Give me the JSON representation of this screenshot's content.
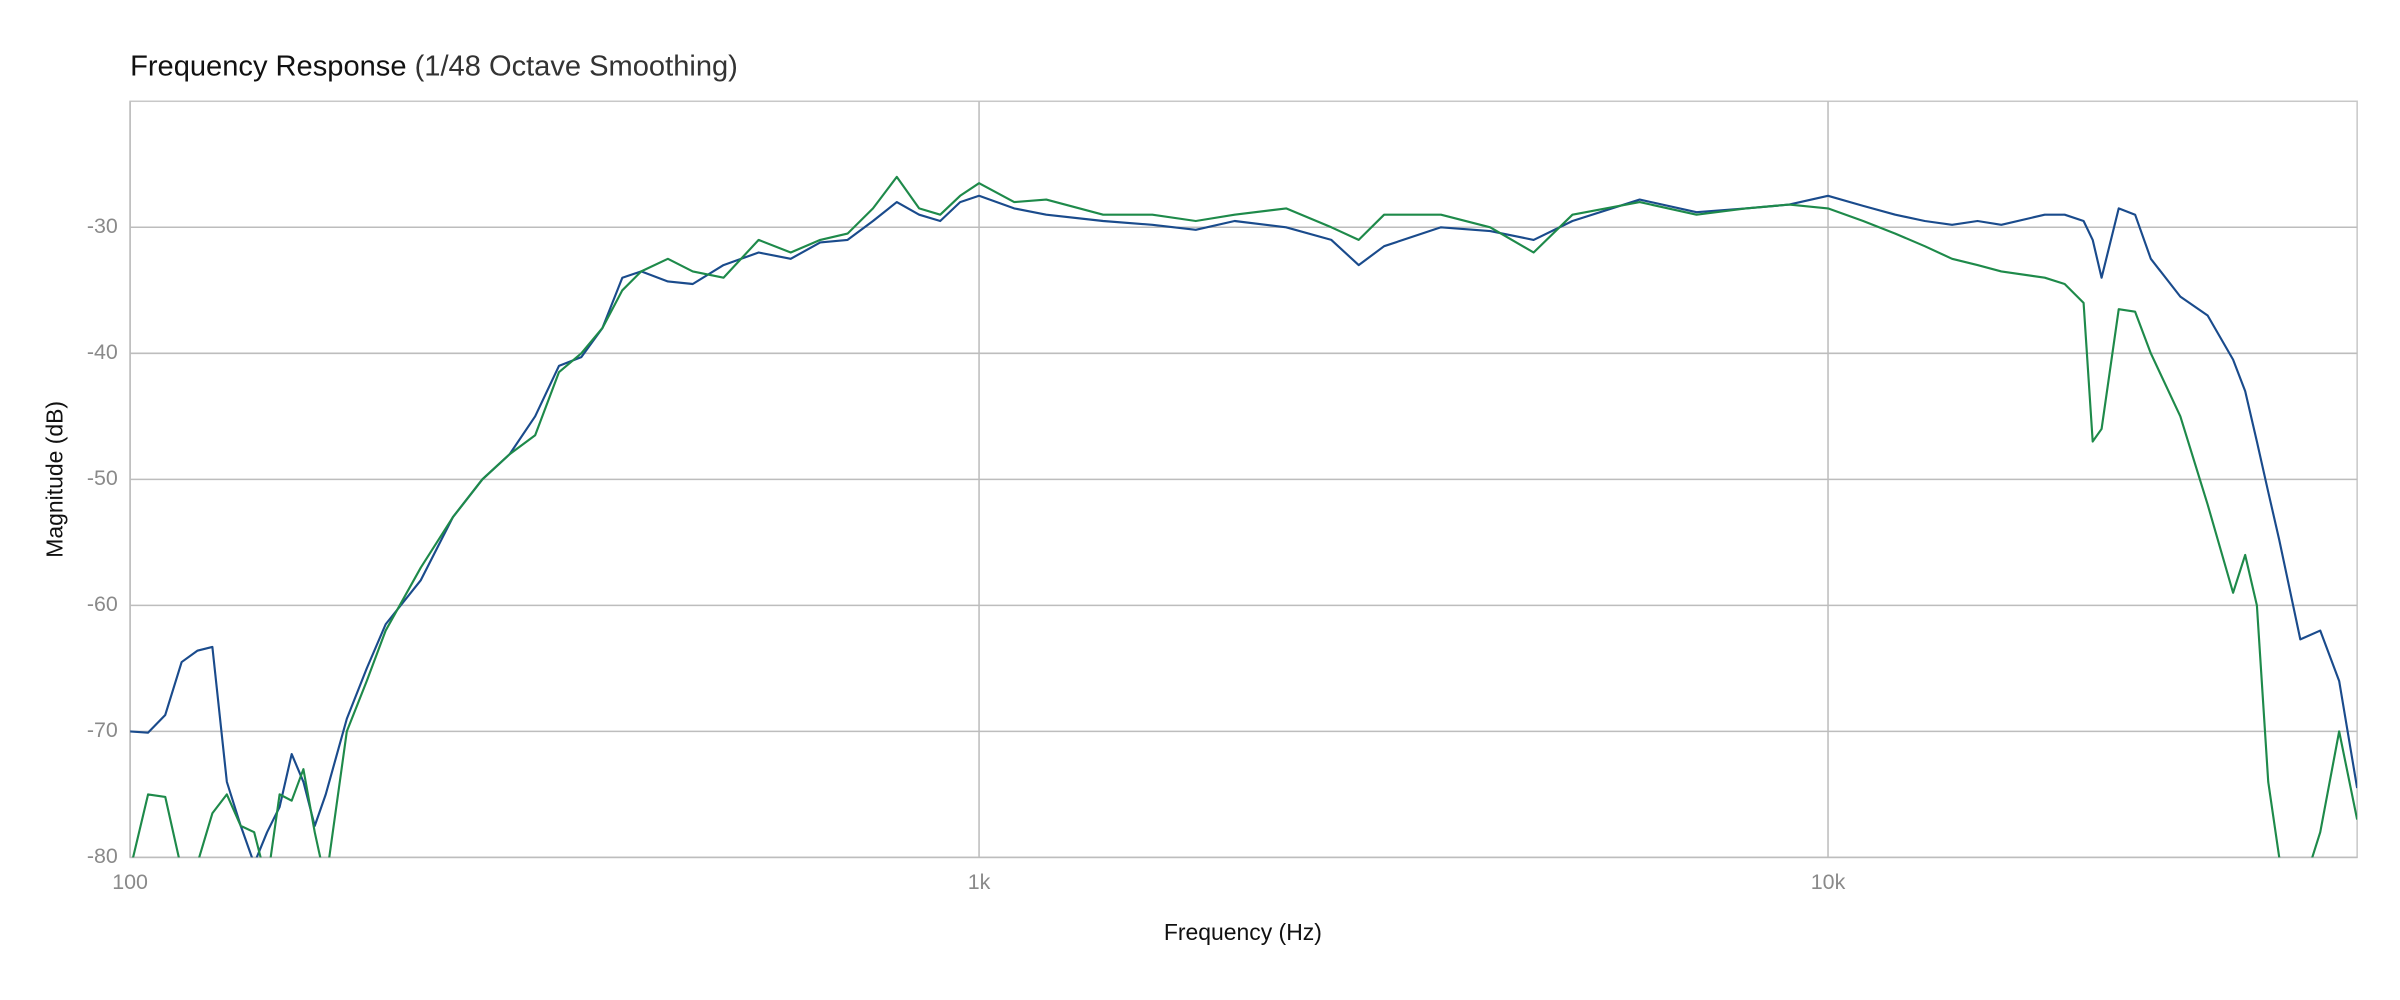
{
  "chart_data": {
    "type": "line",
    "title": "Frequency Response",
    "subtitle": "(1/48 Octave Smoothing)",
    "xlabel": "Frequency (Hz)",
    "ylabel": "Magnitude (dB)",
    "xscale": "log",
    "grid": true,
    "xlim": [
      100,
      42000
    ],
    "ylim": [
      -80,
      -20
    ],
    "xticks": [
      100,
      {
        "value": 1000,
        "label": "1k"
      },
      {
        "value": 10000,
        "label": "10k"
      }
    ],
    "yticks": [
      -80,
      -70,
      -60,
      -50,
      -40,
      -30
    ],
    "x": [
      100,
      105,
      110,
      115,
      120,
      125,
      130,
      135,
      140,
      145,
      150,
      155,
      160,
      165,
      170,
      180,
      190,
      200,
      220,
      240,
      260,
      280,
      300,
      320,
      340,
      360,
      380,
      400,
      430,
      460,
      500,
      550,
      600,
      650,
      700,
      750,
      800,
      850,
      900,
      950,
      1000,
      1100,
      1200,
      1400,
      1600,
      1800,
      2000,
      2300,
      2600,
      2800,
      3000,
      3500,
      4000,
      4500,
      5000,
      6000,
      7000,
      8000,
      9000,
      10000,
      11000,
      12000,
      13000,
      14000,
      15000,
      16000,
      18000,
      19000,
      20000,
      20500,
      21000,
      22000,
      23000,
      24000,
      26000,
      28000,
      30000,
      31000,
      32000,
      33000,
      34000,
      36000,
      38000,
      40000,
      42000
    ],
    "series": [
      {
        "color": "#1a4b8c",
        "values": [
          -70,
          -70.1,
          -68.7,
          -64.5,
          -63.6,
          -63.3,
          -74,
          -77.5,
          -80.5,
          -78,
          -76,
          -71.8,
          -74,
          -77.5,
          -75,
          -69,
          -65,
          -61.5,
          -58,
          -53,
          -50,
          -48,
          -45,
          -41,
          -40.3,
          -38,
          -34,
          -33.5,
          -34.3,
          -34.5,
          -33,
          -32,
          -32.5,
          -31.2,
          -31,
          -29.5,
          -28,
          -29,
          -29.5,
          -28,
          -27.5,
          -28.5,
          -29,
          -29.5,
          -29.8,
          -30.2,
          -29.5,
          -30,
          -31,
          -33,
          -31.5,
          -30,
          -30.3,
          -31,
          -29.5,
          -27.8,
          -28.8,
          -28.5,
          -28.2,
          -27.5,
          -28.3,
          -29,
          -29.5,
          -29.8,
          -29.5,
          -29.8,
          -29,
          -29,
          -29.5,
          -31,
          -34,
          -28.5,
          -29,
          -32.5,
          -35.5,
          -37,
          -40.5,
          -43,
          -47,
          -51,
          -54.8,
          -62.7,
          -62,
          -66,
          -74.5
        ]
      },
      {
        "color": "#1e8a4a",
        "values": [
          -81,
          -75,
          -75.2,
          -81,
          -80.5,
          -76.5,
          -75,
          -77.5,
          -78,
          -82,
          -75,
          -75.5,
          -73,
          -78,
          -82,
          -70,
          -66,
          -62,
          -57,
          -53,
          -50,
          -48,
          -46.5,
          -41.5,
          -40,
          -38,
          -35,
          -33.5,
          -32.5,
          -33.5,
          -34,
          -31,
          -32,
          -31,
          -30.5,
          -28.5,
          -26,
          -28.5,
          -29,
          -27.5,
          -26.5,
          -28,
          -27.8,
          -29,
          -29,
          -29.5,
          -29,
          -28.5,
          -30,
          -31,
          -29,
          -29,
          -30,
          -32,
          -29,
          -28,
          -29,
          -28.5,
          -28.2,
          -28.5,
          -29.5,
          -30.5,
          -31.5,
          -32.5,
          -33,
          -33.5,
          -34,
          -34.5,
          -36,
          -47,
          -46,
          -36.5,
          -36.7,
          -40,
          -45,
          -52,
          -59,
          -56,
          -60,
          -74,
          -80,
          -83,
          -78,
          -70,
          -77
        ]
      }
    ]
  }
}
